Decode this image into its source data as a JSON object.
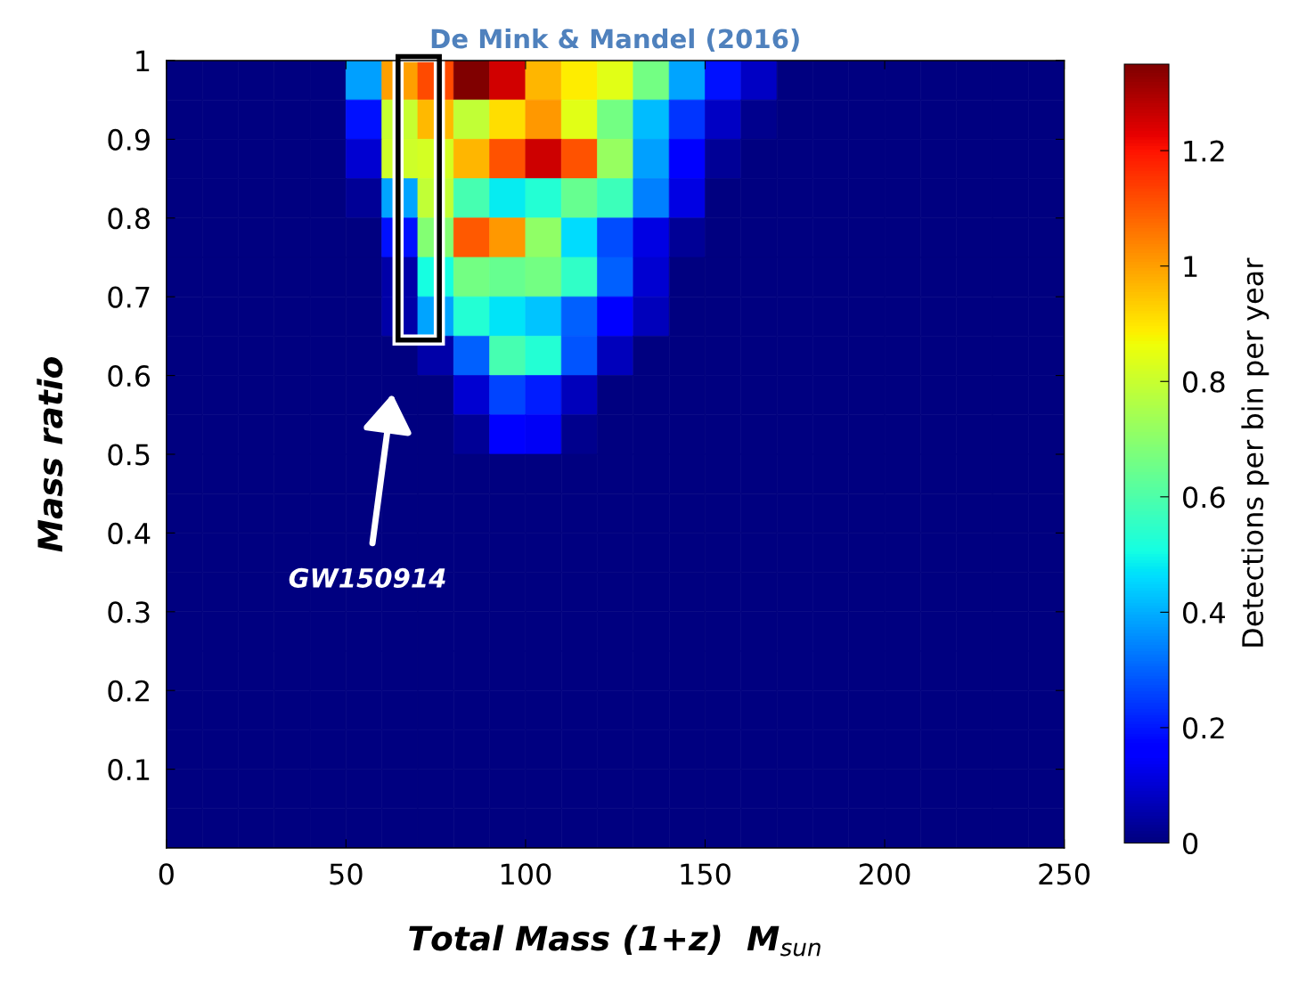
{
  "chart_data": {
    "type": "heatmap",
    "title": "De Mink & Mandel (2016)",
    "xlabel": "Total Mass (1+z)  M$_{sun}$",
    "ylabel": "Mass ratio",
    "clabel": "Detections per bin per year",
    "x": [
      5,
      15,
      25,
      35,
      45,
      55,
      65,
      75,
      85,
      95,
      105,
      115,
      125,
      135,
      145,
      155,
      165,
      175,
      185,
      195,
      205,
      215,
      225,
      235,
      245
    ],
    "xlim": [
      0,
      250
    ],
    "xticks": [
      0,
      50,
      100,
      150,
      200,
      250
    ],
    "ylim": [
      0,
      1
    ],
    "yticks": [
      0.1,
      0.2,
      0.3,
      0.4,
      0.5,
      0.6,
      0.7,
      0.8,
      0.9,
      1
    ],
    "clim": [
      0,
      1.35
    ],
    "cticks": [
      0,
      0.2,
      0.4,
      0.6,
      0.8,
      1,
      1.2
    ],
    "cells": [
      [
        0,
        0,
        0,
        0,
        0,
        0.38,
        1.0,
        1.12,
        1.35,
        1.25,
        0.97,
        0.89,
        0.84,
        0.66,
        0.39,
        0.19,
        0.08,
        0,
        0,
        0,
        0,
        0,
        0,
        0,
        0
      ],
      [
        0,
        0,
        0,
        0,
        0,
        0.19,
        0.8,
        0.96,
        0.79,
        0.91,
        1.01,
        0.84,
        0.66,
        0.42,
        0.24,
        0.08,
        0.02,
        0,
        0,
        0,
        0,
        0,
        0,
        0,
        0
      ],
      [
        0,
        0,
        0,
        0,
        0,
        0.1,
        0.81,
        0.82,
        0.97,
        1.11,
        1.26,
        1.11,
        0.72,
        0.38,
        0.17,
        0.03,
        0,
        0,
        0,
        0,
        0,
        0,
        0,
        0,
        0
      ],
      [
        0,
        0,
        0,
        0,
        0,
        0.03,
        0.39,
        0.79,
        0.59,
        0.48,
        0.53,
        0.64,
        0.57,
        0.34,
        0.12,
        0,
        0,
        0,
        0,
        0,
        0,
        0,
        0,
        0,
        0
      ],
      [
        0,
        0,
        0,
        0,
        0,
        0,
        0.19,
        0.69,
        1.1,
        1.01,
        0.71,
        0.46,
        0.27,
        0.12,
        0.03,
        0,
        0,
        0,
        0,
        0,
        0,
        0,
        0,
        0,
        0
      ],
      [
        0,
        0,
        0,
        0,
        0,
        0,
        0.05,
        0.51,
        0.66,
        0.64,
        0.66,
        0.55,
        0.3,
        0.1,
        0,
        0,
        0,
        0,
        0,
        0,
        0,
        0,
        0,
        0,
        0
      ],
      [
        0,
        0,
        0,
        0,
        0,
        0,
        0.05,
        0.39,
        0.53,
        0.47,
        0.43,
        0.3,
        0.15,
        0.07,
        0,
        0,
        0,
        0,
        0,
        0,
        0,
        0,
        0,
        0,
        0
      ],
      [
        0,
        0,
        0,
        0,
        0,
        0,
        0,
        0.05,
        0.3,
        0.59,
        0.53,
        0.28,
        0.07,
        0,
        0,
        0,
        0,
        0,
        0,
        0,
        0,
        0,
        0,
        0,
        0
      ],
      [
        0,
        0,
        0,
        0,
        0,
        0,
        0,
        0,
        0.1,
        0.26,
        0.21,
        0.07,
        0,
        0,
        0,
        0,
        0,
        0,
        0,
        0,
        0,
        0,
        0,
        0,
        0
      ],
      [
        0,
        0,
        0,
        0,
        0,
        0,
        0,
        0,
        0.03,
        0.17,
        0.14,
        0.02,
        0,
        0,
        0,
        0,
        0,
        0,
        0,
        0,
        0,
        0,
        0,
        0,
        0
      ],
      [
        0,
        0,
        0,
        0,
        0,
        0,
        0,
        0,
        0,
        0,
        0,
        0,
        0,
        0,
        0,
        0,
        0,
        0,
        0,
        0,
        0,
        0,
        0,
        0,
        0
      ],
      [
        0,
        0,
        0,
        0,
        0,
        0,
        0,
        0,
        0,
        0,
        0,
        0,
        0,
        0,
        0,
        0,
        0,
        0,
        0,
        0,
        0,
        0,
        0,
        0,
        0
      ],
      [
        0,
        0,
        0,
        0,
        0,
        0,
        0,
        0,
        0,
        0,
        0,
        0,
        0,
        0,
        0,
        0,
        0,
        0,
        0,
        0,
        0,
        0,
        0,
        0,
        0
      ],
      [
        0,
        0,
        0,
        0,
        0,
        0,
        0,
        0,
        0,
        0,
        0,
        0,
        0,
        0,
        0,
        0,
        0,
        0,
        0,
        0,
        0,
        0,
        0,
        0,
        0
      ],
      [
        0,
        0,
        0,
        0,
        0,
        0,
        0,
        0,
        0,
        0,
        0,
        0,
        0,
        0,
        0,
        0,
        0,
        0,
        0,
        0,
        0,
        0,
        0,
        0,
        0
      ],
      [
        0,
        0,
        0,
        0,
        0,
        0,
        0,
        0,
        0,
        0,
        0,
        0,
        0,
        0,
        0,
        0,
        0,
        0,
        0,
        0,
        0,
        0,
        0,
        0,
        0
      ],
      [
        0,
        0,
        0,
        0,
        0,
        0,
        0,
        0,
        0,
        0,
        0,
        0,
        0,
        0,
        0,
        0,
        0,
        0,
        0,
        0,
        0,
        0,
        0,
        0,
        0
      ],
      [
        0,
        0,
        0,
        0,
        0,
        0,
        0,
        0,
        0,
        0,
        0,
        0,
        0,
        0,
        0,
        0,
        0,
        0,
        0,
        0,
        0,
        0,
        0,
        0,
        0
      ],
      [
        0,
        0,
        0,
        0,
        0,
        0,
        0,
        0,
        0,
        0,
        0,
        0,
        0,
        0,
        0,
        0,
        0,
        0,
        0,
        0,
        0,
        0,
        0,
        0,
        0
      ],
      [
        0,
        0,
        0,
        0,
        0,
        0,
        0,
        0,
        0,
        0,
        0,
        0,
        0,
        0,
        0,
        0,
        0,
        0,
        0,
        0,
        0,
        0,
        0,
        0,
        0
      ]
    ],
    "annotations": [
      "GW150914"
    ]
  }
}
